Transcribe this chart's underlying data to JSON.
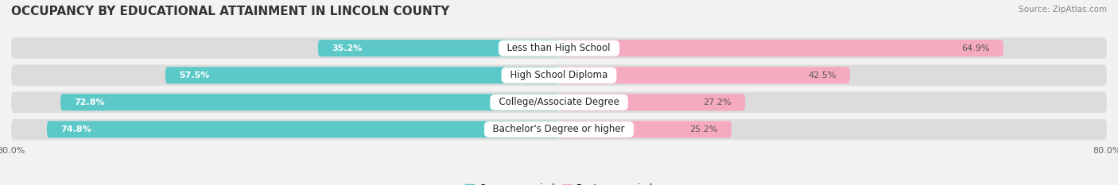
{
  "title": "OCCUPANCY BY EDUCATIONAL ATTAINMENT IN LINCOLN COUNTY",
  "source": "Source: ZipAtlas.com",
  "categories": [
    "Less than High School",
    "High School Diploma",
    "College/Associate Degree",
    "Bachelor's Degree or higher"
  ],
  "owner_values": [
    35.2,
    57.5,
    72.8,
    74.8
  ],
  "renter_values": [
    64.9,
    42.5,
    27.2,
    25.2
  ],
  "owner_color": "#5DC8C8",
  "renter_color": "#F080A0",
  "renter_color_light": "#F5AABF",
  "background_color": "#f2f2f2",
  "bar_bg_color": "#dcdcdc",
  "xlim_left": -80.0,
  "xlim_right": 80.0,
  "title_fontsize": 11,
  "label_fontsize": 8.5,
  "value_fontsize": 8,
  "axis_label_fontsize": 8
}
